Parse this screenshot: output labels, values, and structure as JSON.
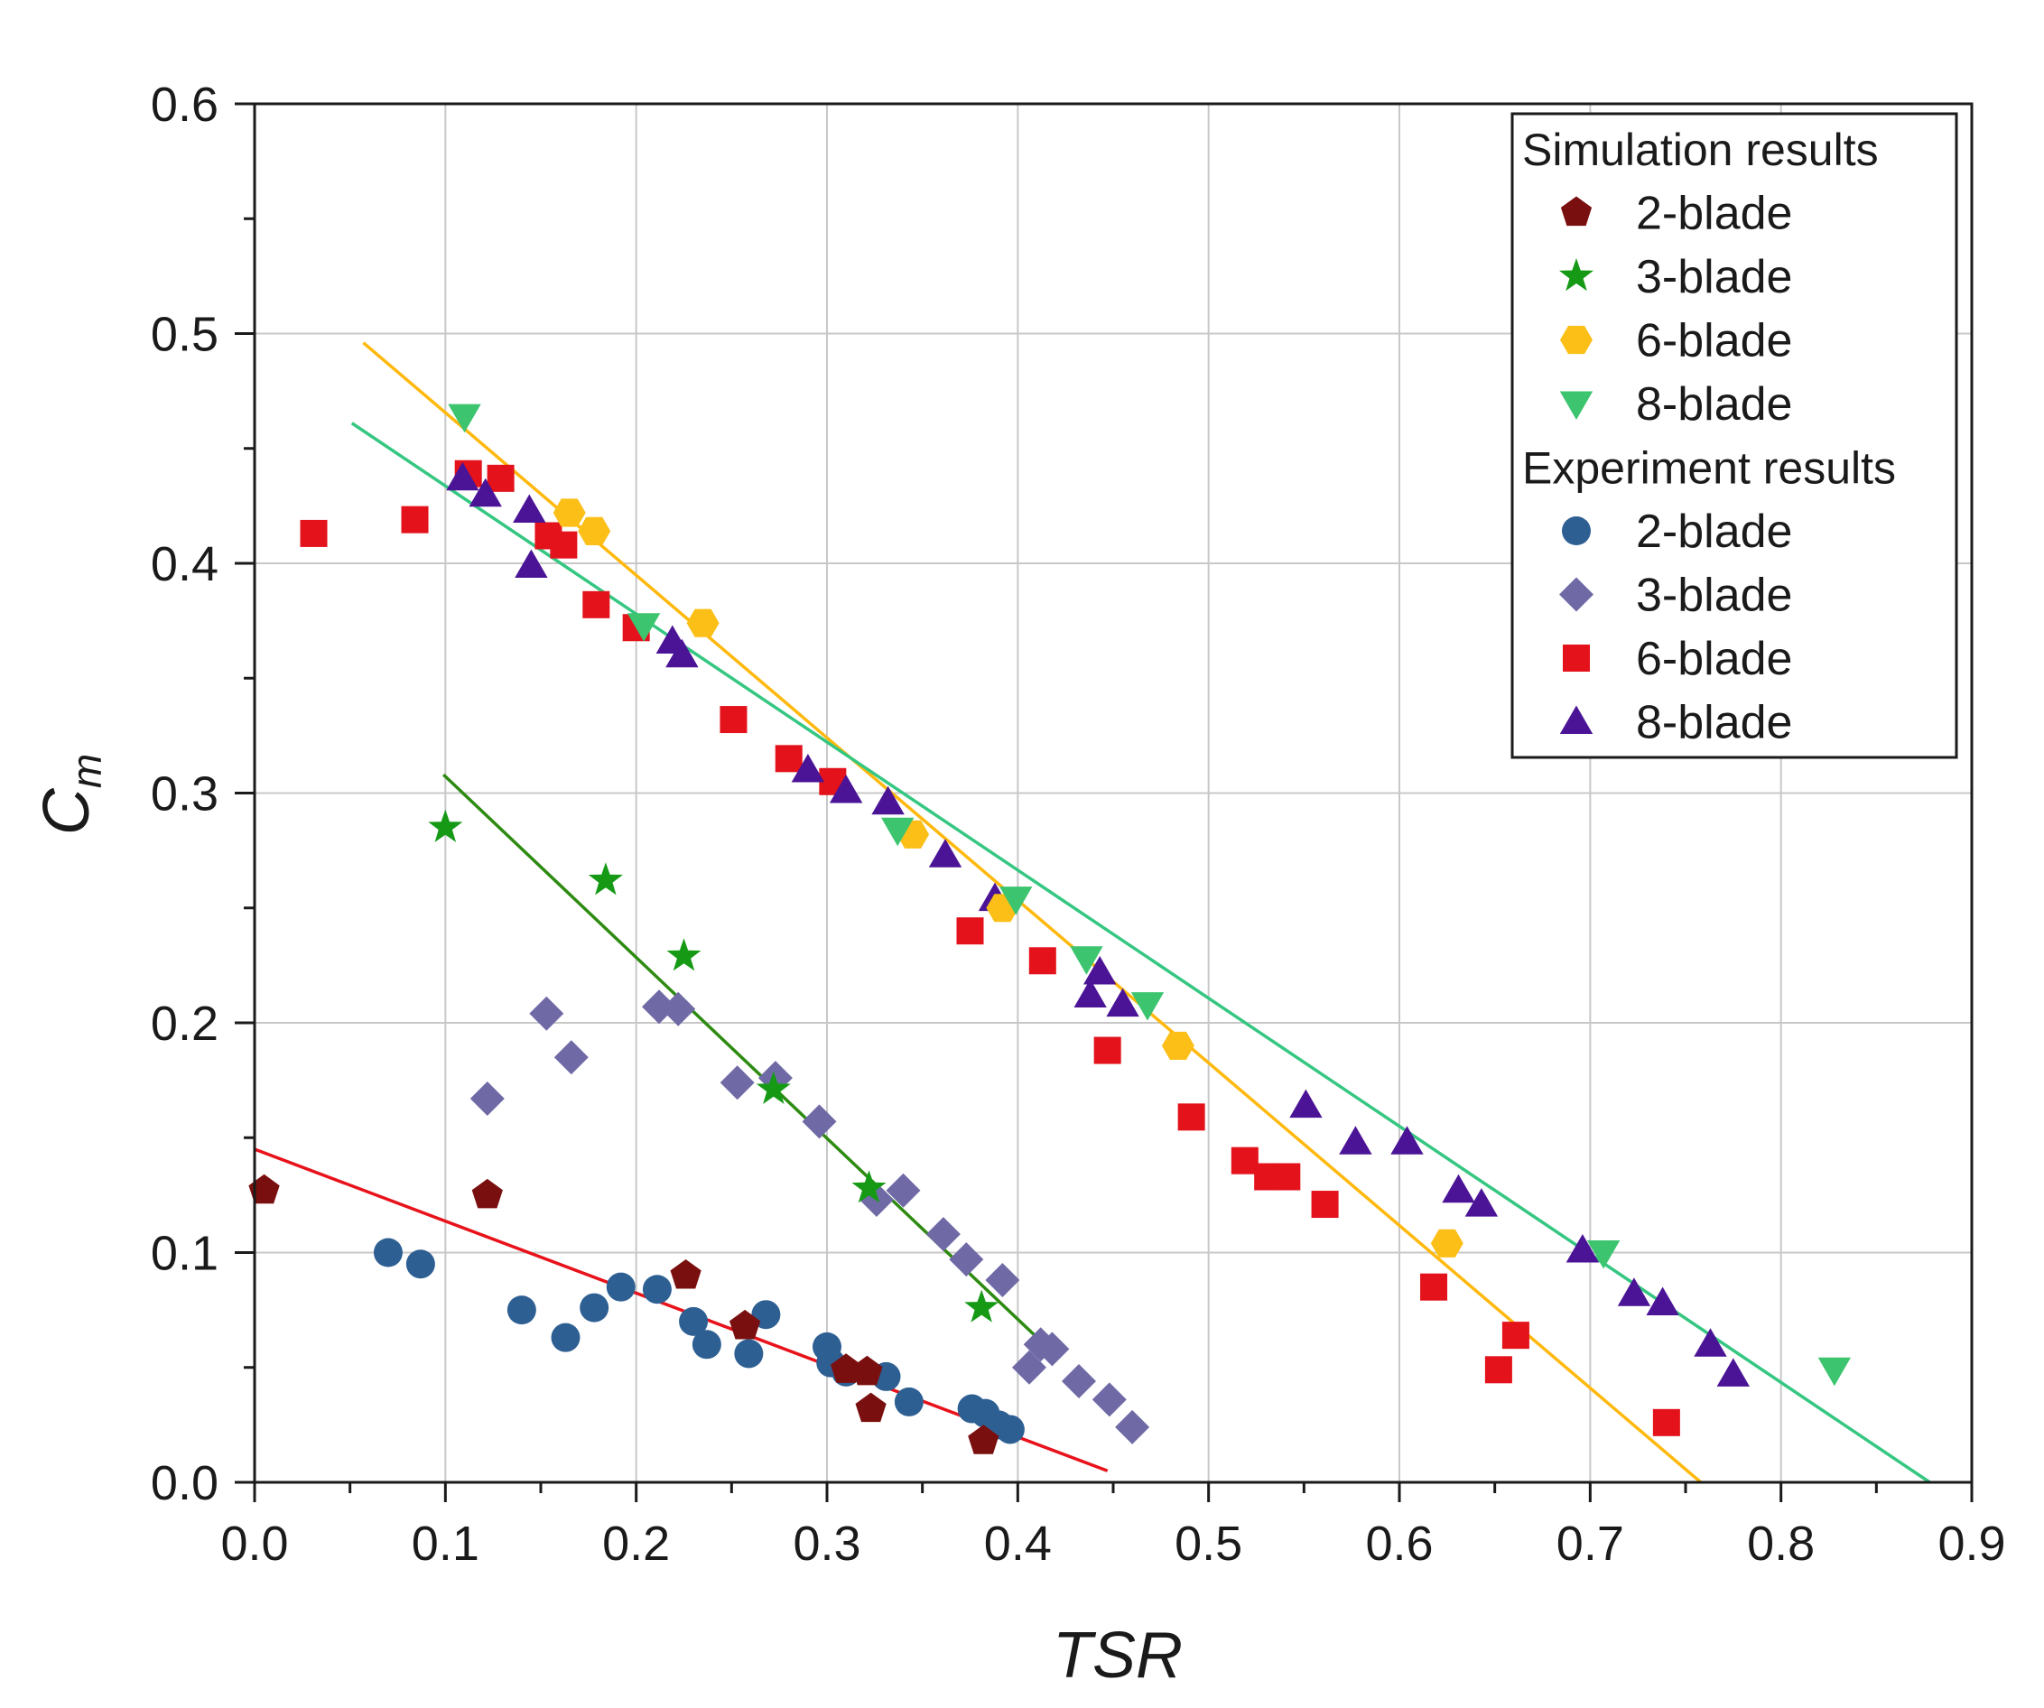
{
  "chart_data": {
    "type": "scatter",
    "title": "",
    "xlabel": "TSR",
    "ylabel_main": "C",
    "ylabel_sub": "m",
    "xlim": [
      0.0,
      0.9
    ],
    "ylim": [
      0.0,
      0.6
    ],
    "x_ticks": [
      "0.0",
      "0.1",
      "0.2",
      "0.3",
      "0.4",
      "0.5",
      "0.6",
      "0.7",
      "0.8",
      "0.9"
    ],
    "y_ticks": [
      "0.0",
      "0.1",
      "0.2",
      "0.3",
      "0.4",
      "0.5",
      "0.6"
    ],
    "grid": true,
    "legend_position": "top-right",
    "legend_groups": [
      {
        "title": "Simulation results",
        "entries": [
          {
            "series": "sim-2",
            "label": "2-blade"
          },
          {
            "series": "sim-3",
            "label": "3-blade"
          },
          {
            "series": "sim-6",
            "label": "6-blade"
          },
          {
            "series": "sim-8",
            "label": "8-blade"
          }
        ]
      },
      {
        "title": "Experiment results",
        "entries": [
          {
            "series": "exp-2",
            "label": "2-blade"
          },
          {
            "series": "exp-3",
            "label": "3-blade"
          },
          {
            "series": "exp-6",
            "label": "6-blade"
          },
          {
            "series": "exp-8",
            "label": "8-blade"
          }
        ]
      }
    ],
    "series": [
      {
        "id": "exp-2",
        "name": "Experiment 2-blade",
        "marker": "circle",
        "color": "#2e5f93",
        "points": [
          [
            0.07,
            0.1
          ],
          [
            0.087,
            0.095
          ],
          [
            0.14,
            0.075
          ],
          [
            0.163,
            0.063
          ],
          [
            0.178,
            0.076
          ],
          [
            0.192,
            0.085
          ],
          [
            0.211,
            0.084
          ],
          [
            0.23,
            0.07
          ],
          [
            0.237,
            0.06
          ],
          [
            0.259,
            0.056
          ],
          [
            0.268,
            0.073
          ],
          [
            0.3,
            0.059
          ],
          [
            0.302,
            0.052
          ],
          [
            0.31,
            0.048
          ],
          [
            0.331,
            0.046
          ],
          [
            0.343,
            0.035
          ],
          [
            0.376,
            0.032
          ],
          [
            0.383,
            0.03
          ],
          [
            0.39,
            0.025
          ],
          [
            0.396,
            0.023
          ]
        ]
      },
      {
        "id": "exp-3",
        "name": "Experiment 3-blade",
        "marker": "diamond",
        "color": "#6f6aa6",
        "points": [
          [
            0.122,
            0.167
          ],
          [
            0.153,
            0.204
          ],
          [
            0.166,
            0.185
          ],
          [
            0.212,
            0.207
          ],
          [
            0.222,
            0.206
          ],
          [
            0.253,
            0.174
          ],
          [
            0.273,
            0.176
          ],
          [
            0.296,
            0.157
          ],
          [
            0.326,
            0.123
          ],
          [
            0.34,
            0.127
          ],
          [
            0.361,
            0.108
          ],
          [
            0.373,
            0.097
          ],
          [
            0.392,
            0.088
          ],
          [
            0.406,
            0.05
          ],
          [
            0.412,
            0.06
          ],
          [
            0.418,
            0.058
          ],
          [
            0.432,
            0.044
          ],
          [
            0.448,
            0.036
          ],
          [
            0.46,
            0.024
          ]
        ]
      },
      {
        "id": "exp-6",
        "name": "Experiment 6-blade",
        "marker": "square",
        "color": "#e3121b",
        "points": [
          [
            0.031,
            0.413
          ],
          [
            0.084,
            0.419
          ],
          [
            0.112,
            0.439
          ],
          [
            0.129,
            0.437
          ],
          [
            0.154,
            0.412
          ],
          [
            0.162,
            0.408
          ],
          [
            0.179,
            0.382
          ],
          [
            0.2,
            0.372
          ],
          [
            0.251,
            0.332
          ],
          [
            0.28,
            0.315
          ],
          [
            0.303,
            0.305
          ],
          [
            0.375,
            0.24
          ],
          [
            0.413,
            0.227
          ],
          [
            0.447,
            0.188
          ],
          [
            0.491,
            0.159
          ],
          [
            0.519,
            0.14
          ],
          [
            0.531,
            0.133
          ],
          [
            0.541,
            0.133
          ],
          [
            0.561,
            0.121
          ],
          [
            0.618,
            0.085
          ],
          [
            0.652,
            0.049
          ],
          [
            0.661,
            0.064
          ],
          [
            0.74,
            0.026
          ]
        ]
      },
      {
        "id": "exp-8",
        "name": "Experiment 8-blade",
        "marker": "triangle-up",
        "color": "#4b1496",
        "points": [
          [
            0.109,
            0.437
          ],
          [
            0.121,
            0.43
          ],
          [
            0.144,
            0.423
          ],
          [
            0.145,
            0.399
          ],
          [
            0.219,
            0.366
          ],
          [
            0.224,
            0.36
          ],
          [
            0.29,
            0.31
          ],
          [
            0.31,
            0.301
          ],
          [
            0.332,
            0.296
          ],
          [
            0.362,
            0.273
          ],
          [
            0.388,
            0.254
          ],
          [
            0.443,
            0.222
          ],
          [
            0.438,
            0.212
          ],
          [
            0.455,
            0.208
          ],
          [
            0.551,
            0.164
          ],
          [
            0.577,
            0.148
          ],
          [
            0.604,
            0.148
          ],
          [
            0.631,
            0.127
          ],
          [
            0.643,
            0.121
          ],
          [
            0.696,
            0.101
          ],
          [
            0.723,
            0.082
          ],
          [
            0.738,
            0.078
          ],
          [
            0.763,
            0.06
          ],
          [
            0.775,
            0.047
          ]
        ]
      },
      {
        "id": "sim-2",
        "name": "Simulation 2-blade",
        "marker": "pentagon",
        "color": "#7a0f0f",
        "points": [
          [
            0.005,
            0.127
          ],
          [
            0.122,
            0.125
          ],
          [
            0.226,
            0.09
          ],
          [
            0.257,
            0.068
          ],
          [
            0.31,
            0.049
          ],
          [
            0.321,
            0.048
          ],
          [
            0.323,
            0.032
          ],
          [
            0.382,
            0.018
          ]
        ]
      },
      {
        "id": "sim-3",
        "name": "Simulation 3-blade",
        "marker": "star",
        "color": "#169a16",
        "points": [
          [
            0.1,
            0.285
          ],
          [
            0.184,
            0.262
          ],
          [
            0.225,
            0.229
          ],
          [
            0.272,
            0.171
          ],
          [
            0.322,
            0.128
          ],
          [
            0.381,
            0.076
          ]
        ]
      },
      {
        "id": "sim-6",
        "name": "Simulation 6-blade",
        "marker": "hexagon",
        "color": "#fbbf18",
        "points": [
          [
            0.165,
            0.422
          ],
          [
            0.178,
            0.414
          ],
          [
            0.235,
            0.374
          ],
          [
            0.345,
            0.282
          ],
          [
            0.392,
            0.25
          ],
          [
            0.484,
            0.19
          ],
          [
            0.625,
            0.104
          ]
        ]
      },
      {
        "id": "sim-8",
        "name": "Simulation 8-blade",
        "marker": "triangle-down",
        "color": "#3cc46f",
        "points": [
          [
            0.11,
            0.464
          ],
          [
            0.204,
            0.373
          ],
          [
            0.337,
            0.284
          ],
          [
            0.399,
            0.254
          ],
          [
            0.436,
            0.228
          ],
          [
            0.468,
            0.208
          ],
          [
            0.707,
            0.1
          ],
          [
            0.828,
            0.049
          ]
        ]
      }
    ],
    "trendlines": [
      {
        "id": "fit-2",
        "name": "2-blade fit",
        "color": "#e8121b",
        "from": [
          0.0,
          0.145
        ],
        "to": [
          0.447,
          0.005
        ]
      },
      {
        "id": "fit-3",
        "name": "3-blade fit",
        "color": "#2e8b12",
        "from": [
          0.099,
          0.308
        ],
        "to": [
          0.419,
          0.056
        ]
      },
      {
        "id": "fit-6",
        "name": "6-blade fit",
        "color": "#ffb80e",
        "from": [
          0.057,
          0.496
        ],
        "to": [
          0.758,
          0.0
        ]
      },
      {
        "id": "fit-8",
        "name": "8-blade fit",
        "color": "#35c781",
        "from": [
          0.051,
          0.461
        ],
        "to": [
          0.878,
          0.0
        ]
      }
    ]
  }
}
